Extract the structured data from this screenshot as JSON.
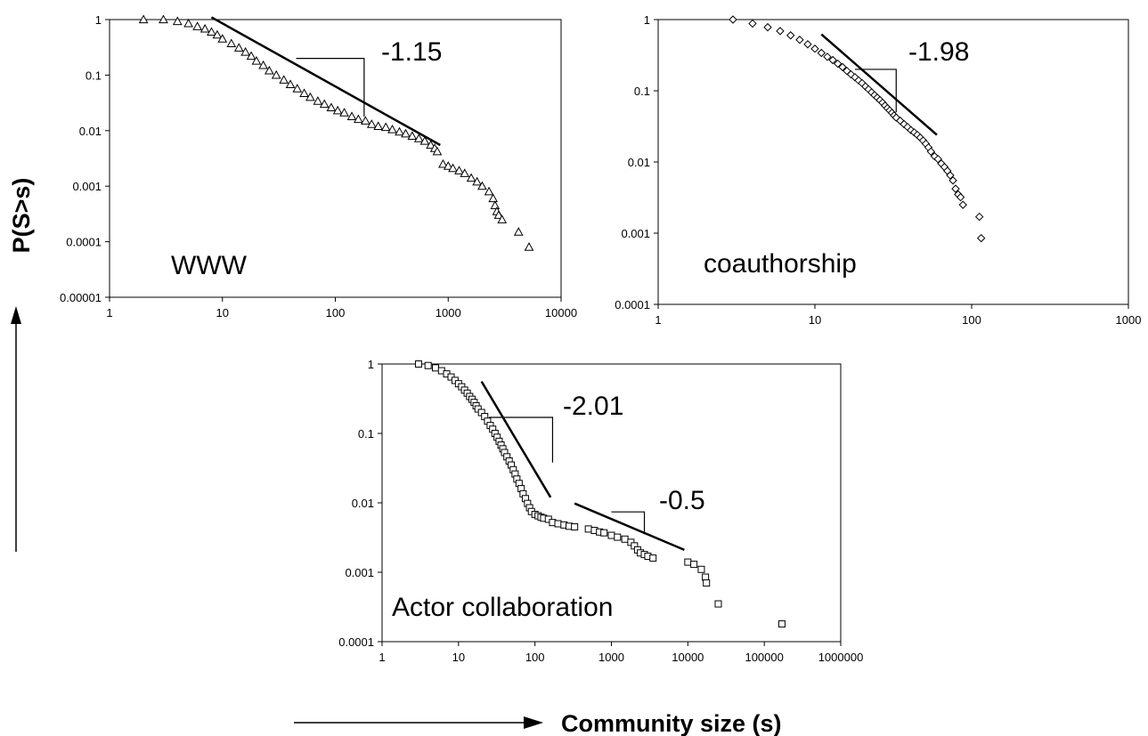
{
  "figure": {
    "ylabel": "P(S>s)",
    "xlabel": "Community size (s)"
  },
  "chart_data": [
    {
      "type": "scatter",
      "label": "WWW",
      "marker": "triangle",
      "x_scale": "log",
      "y_scale": "log",
      "xlim": [
        1,
        10000
      ],
      "ylim": [
        1e-05,
        1
      ],
      "x_ticks": [
        "1",
        "10",
        "100",
        "1000",
        "10000"
      ],
      "y_ticks": [
        "0.00001",
        "0.0001",
        "0.001",
        "0.01",
        "0.1",
        "1"
      ],
      "points": {
        "x": [
          2,
          3,
          4,
          5,
          6,
          7,
          8,
          9,
          10,
          12,
          14,
          16,
          18,
          20,
          23,
          26,
          30,
          35,
          40,
          46,
          53,
          60,
          70,
          80,
          92,
          105,
          120,
          140,
          160,
          185,
          210,
          240,
          280,
          320,
          370,
          420,
          480,
          550,
          620,
          700,
          760,
          800,
          900,
          1000,
          1100,
          1250,
          1400,
          1600,
          1800,
          2000,
          2300,
          2500,
          2600,
          2700,
          2800,
          3000,
          4200,
          5200
        ],
        "y": [
          1,
          1,
          0.93,
          0.85,
          0.75,
          0.68,
          0.6,
          0.53,
          0.45,
          0.37,
          0.31,
          0.26,
          0.22,
          0.18,
          0.15,
          0.12,
          0.1,
          0.082,
          0.068,
          0.057,
          0.047,
          0.04,
          0.034,
          0.03,
          0.026,
          0.023,
          0.021,
          0.018,
          0.016,
          0.015,
          0.013,
          0.012,
          0.0115,
          0.0105,
          0.0095,
          0.0088,
          0.008,
          0.0072,
          0.0065,
          0.0055,
          0.0048,
          0.0042,
          0.0025,
          0.0023,
          0.0021,
          0.0019,
          0.0017,
          0.0014,
          0.0012,
          0.001,
          0.0008,
          0.0006,
          0.00045,
          0.00035,
          0.0003,
          0.00025,
          0.00015,
          8e-05
        ]
      },
      "fit_line": {
        "x": [
          8,
          850
        ],
        "y": [
          1.1,
          0.0055
        ]
      },
      "slope_label": "-1.15",
      "slope_marker": {
        "x": [
          45,
          180,
          180
        ],
        "y": [
          0.2,
          0.2,
          0.018
        ]
      }
    },
    {
      "type": "scatter",
      "label": "coauthorship",
      "marker": "diamond",
      "x_scale": "log",
      "y_scale": "log",
      "xlim": [
        1,
        1000
      ],
      "ylim": [
        0.0001,
        1
      ],
      "x_ticks": [
        "1",
        "10",
        "100",
        "1000"
      ],
      "y_ticks": [
        "0.0001",
        "0.001",
        "0.01",
        "0.1",
        "1"
      ],
      "points": {
        "x": [
          3,
          4,
          5,
          6,
          7,
          8,
          9,
          10,
          11,
          12,
          13,
          14,
          15,
          16,
          17,
          18,
          19,
          20,
          21,
          22,
          23,
          24,
          25,
          26,
          27,
          28,
          29,
          30,
          31,
          32,
          33,
          35,
          37,
          39,
          41,
          43,
          45,
          47,
          49,
          51,
          53,
          55,
          58,
          61,
          64,
          67,
          70,
          73,
          76,
          79,
          82,
          85,
          88,
          112,
          115
        ],
        "y": [
          1,
          0.88,
          0.78,
          0.69,
          0.6,
          0.52,
          0.45,
          0.39,
          0.34,
          0.3,
          0.27,
          0.24,
          0.215,
          0.19,
          0.17,
          0.155,
          0.14,
          0.128,
          0.115,
          0.105,
          0.095,
          0.087,
          0.08,
          0.074,
          0.068,
          0.062,
          0.057,
          0.053,
          0.049,
          0.045,
          0.042,
          0.038,
          0.034,
          0.031,
          0.028,
          0.026,
          0.024,
          0.022,
          0.02,
          0.018,
          0.016,
          0.014,
          0.012,
          0.011,
          0.0095,
          0.0085,
          0.0075,
          0.0065,
          0.0055,
          0.0042,
          0.0035,
          0.0032,
          0.0025,
          0.0017,
          0.00085
        ]
      },
      "fit_line": {
        "x": [
          11,
          60
        ],
        "y": [
          0.62,
          0.024
        ]
      },
      "slope_label": "-1.98",
      "slope_marker": {
        "x": [
          18,
          33,
          33
        ],
        "y": [
          0.2,
          0.2,
          0.05
        ]
      }
    },
    {
      "type": "scatter",
      "label": "Actor collaboration",
      "marker": "square",
      "x_scale": "log",
      "y_scale": "log",
      "xlim": [
        1,
        1000000
      ],
      "ylim": [
        0.0001,
        1
      ],
      "x_ticks": [
        "1",
        "10",
        "100",
        "1000",
        "10000",
        "100000",
        "1000000"
      ],
      "y_ticks": [
        "0.0001",
        "0.001",
        "0.01",
        "0.1",
        "1"
      ],
      "points": {
        "x": [
          3,
          4,
          5,
          6,
          7,
          8,
          9,
          10,
          11,
          12,
          13,
          14,
          15,
          16,
          17,
          18,
          20,
          22,
          24,
          26,
          28,
          30,
          32,
          34,
          36,
          38,
          40,
          43,
          46,
          49,
          52,
          55,
          58,
          62,
          66,
          70,
          75,
          80,
          85,
          90,
          100,
          110,
          120,
          130,
          150,
          170,
          200,
          240,
          280,
          330,
          500,
          600,
          700,
          800,
          1000,
          1200,
          1500,
          1800,
          2000,
          2200,
          2400,
          2700,
          3000,
          3500,
          10000,
          12000,
          15000,
          17000,
          17500,
          25000,
          170000
        ],
        "y": [
          1,
          0.95,
          0.88,
          0.8,
          0.72,
          0.65,
          0.58,
          0.52,
          0.47,
          0.42,
          0.38,
          0.34,
          0.31,
          0.28,
          0.25,
          0.225,
          0.2,
          0.175,
          0.15,
          0.13,
          0.115,
          0.1,
          0.088,
          0.077,
          0.068,
          0.06,
          0.053,
          0.046,
          0.04,
          0.035,
          0.03,
          0.026,
          0.022,
          0.019,
          0.016,
          0.0135,
          0.0115,
          0.0098,
          0.0085,
          0.0075,
          0.0068,
          0.0065,
          0.0062,
          0.006,
          0.0058,
          0.0052,
          0.005,
          0.0048,
          0.0046,
          0.0045,
          0.0042,
          0.004,
          0.0038,
          0.0037,
          0.0034,
          0.0032,
          0.003,
          0.0027,
          0.0024,
          0.0021,
          0.0019,
          0.0018,
          0.0017,
          0.0016,
          0.0014,
          0.0013,
          0.0011,
          0.00085,
          0.0007,
          0.00035,
          0.00018
        ]
      },
      "fit_line": {
        "x": [
          20,
          160
        ],
        "y": [
          0.56,
          0.012
        ]
      },
      "fit_line2": {
        "x": [
          330,
          9000
        ],
        "y": [
          0.0098,
          0.0021
        ]
      },
      "slope_label": "-2.01",
      "slope_marker": {
        "x": [
          25,
          170,
          170
        ],
        "y": [
          0.17,
          0.17,
          0.038
        ]
      },
      "slope_label2": "-0.5",
      "slope_marker2": {
        "x": [
          1000,
          2700,
          2700
        ],
        "y": [
          0.0074,
          0.0074,
          0.0038
        ]
      }
    }
  ]
}
